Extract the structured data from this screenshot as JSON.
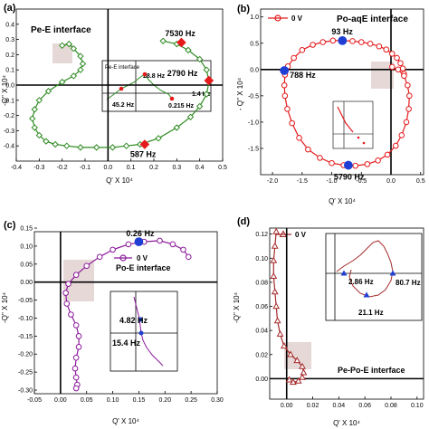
{
  "chart_data": [
    {
      "type": "scatter",
      "panel_label": "(a)",
      "title": "",
      "annotation_title": "Pe-E interface",
      "xlabel": "Q' X 10⁴",
      "ylabel": "-Q'' X 10⁴",
      "xlim": [
        -0.4,
        0.5
      ],
      "ylim": [
        -0.5,
        0.5
      ],
      "xticks": [
        "-0.4",
        "-0.3",
        "-0.2",
        "-0.1",
        "0.0",
        "0.1",
        "0.2",
        "0.3",
        "0.4",
        "0.5"
      ],
      "yticks": [
        "-0.4",
        "-0.3",
        "-0.2",
        "-0.1",
        "0.0",
        "0.1",
        "0.2",
        "0.3",
        "0.4"
      ],
      "grid": false,
      "color": "#2e8b22",
      "series": [
        {
          "x": [
            -0.2,
            -0.17,
            -0.15,
            -0.12,
            -0.11,
            -0.12,
            -0.15,
            -0.2,
            -0.26,
            -0.3,
            -0.32,
            -0.33,
            -0.32,
            -0.3,
            -0.27,
            -0.23,
            -0.18,
            -0.12,
            -0.05,
            0.02,
            0.08,
            0.14,
            0.22,
            0.3,
            0.36,
            0.4,
            0.43,
            0.44,
            0.43,
            0.4,
            0.35,
            0.3,
            0.24
          ],
          "y": [
            0.26,
            0.27,
            0.24,
            0.19,
            0.14,
            0.1,
            0.06,
            0.02,
            -0.04,
            -0.1,
            -0.16,
            -0.22,
            -0.28,
            -0.33,
            -0.37,
            -0.39,
            -0.4,
            -0.41,
            -0.41,
            -0.41,
            -0.4,
            -0.39,
            -0.35,
            -0.28,
            -0.21,
            -0.14,
            -0.06,
            0.02,
            0.1,
            0.17,
            0.23,
            0.27,
            0.29
          ]
        }
      ],
      "highlights": [
        {
          "label": "7530 Hz",
          "x": 0.32,
          "y": 0.28
        },
        {
          "label": "2790 Hz",
          "x": 0.44,
          "y": 0.03
        },
        {
          "label": "587 Hz",
          "x": 0.16,
          "y": -0.39
        }
      ],
      "inset_labels": [
        "Pe-E interface",
        "28.8 Hz",
        "1.4 Hz",
        "45.2 Hz",
        "0.215 Hz"
      ]
    },
    {
      "type": "scatter",
      "panel_label": "(b)",
      "title": "",
      "annotation_title": "Po-aqE interface",
      "legend": [
        "0 V"
      ],
      "xlabel": "Q' X 10⁴",
      "ylabel": "- Q'' X 10⁴",
      "xlim": [
        -2.2,
        0.55
      ],
      "ylim": [
        -2.0,
        1.15
      ],
      "xticks": [
        "-2.0",
        "-1.5",
        "-1.0",
        "-0.5",
        "0.0",
        "0.5"
      ],
      "yticks": [
        "-1.5",
        "-1.0",
        "-0.5",
        "0.0",
        "0.5",
        "1.0"
      ],
      "grid": false,
      "color": "#e41a1c",
      "series": [
        {
          "name": "0 V",
          "x": [
            0.22,
            0.2,
            0.16,
            0.1,
            0.02,
            -0.08,
            -0.2,
            -0.35,
            -0.5,
            -0.65,
            -0.82,
            -0.98,
            -1.15,
            -1.32,
            -1.5,
            -1.64,
            -1.74,
            -1.79,
            -1.8,
            -1.79,
            -1.75,
            -1.67,
            -1.55,
            -1.4,
            -1.2,
            -1.0,
            -0.8,
            -0.6,
            -0.4,
            -0.22,
            -0.06,
            0.08,
            0.18,
            0.26,
            0.3,
            0.31,
            0.28,
            0.22,
            0.12,
            0.02
          ],
          "y": [
            -0.08,
            0.02,
            0.12,
            0.22,
            0.3,
            0.38,
            0.44,
            0.49,
            0.52,
            0.54,
            0.55,
            0.55,
            0.52,
            0.47,
            0.37,
            0.22,
            0.06,
            -0.1,
            -0.3,
            -0.5,
            -0.75,
            -1.02,
            -1.3,
            -1.52,
            -1.68,
            -1.78,
            -1.82,
            -1.83,
            -1.8,
            -1.73,
            -1.62,
            -1.45,
            -1.25,
            -1.0,
            -0.75,
            -0.5,
            -0.3,
            -0.12,
            0.0,
            0.05
          ]
        }
      ],
      "highlights": [
        {
          "label": "93 Hz",
          "x": -0.82,
          "y": 0.55
        },
        {
          "label": "788 Hz",
          "x": -1.8,
          "y": -0.02
        },
        {
          "label": "5790 Hz",
          "x": -0.72,
          "y": -1.82
        }
      ]
    },
    {
      "type": "scatter",
      "panel_label": "(c)",
      "title": "",
      "annotation_title": "Po-E interface",
      "legend": [
        "0 V"
      ],
      "xlabel": "Q' X 10⁴",
      "ylabel": "-Q'' X 10⁴",
      "xlim": [
        -0.05,
        0.3
      ],
      "ylim": [
        -0.31,
        0.14
      ],
      "xticks": [
        "-0.05",
        "0.00",
        "0.05",
        "0.10",
        "0.15",
        "0.20",
        "0.25",
        "0.30"
      ],
      "yticks": [
        "-0.30",
        "-0.25",
        "-0.20",
        "-0.15",
        "-0.10",
        "-0.05",
        "0.00",
        "0.05",
        "0.10",
        "0.15"
      ],
      "grid": false,
      "color": "#8b1a9b",
      "series": [
        {
          "name": "0 V",
          "x": [
            0.245,
            0.235,
            0.215,
            0.19,
            0.16,
            0.13,
            0.1,
            0.075,
            0.05,
            0.03,
            0.015,
            0.01,
            0.012,
            0.02,
            0.03,
            0.035,
            0.035,
            0.03,
            0.028,
            0.03,
            0.032,
            0.03
          ],
          "y": [
            0.07,
            0.09,
            0.105,
            0.115,
            0.112,
            0.105,
            0.09,
            0.07,
            0.045,
            0.02,
            -0.005,
            -0.03,
            -0.06,
            -0.09,
            -0.12,
            -0.15,
            -0.18,
            -0.21,
            -0.24,
            -0.265,
            -0.285,
            -0.295
          ]
        }
      ],
      "highlights": [
        {
          "label": "0.26 Hz",
          "x": 0.15,
          "y": 0.112
        }
      ],
      "inset_labels": [
        "4.82 Hz",
        "15.4 Hz"
      ]
    },
    {
      "type": "scatter",
      "panel_label": "(d)",
      "title": "",
      "annotation_title": "Pe-Po-E interface",
      "legend": [
        "0 V"
      ],
      "xlabel": "Q' X 10⁴",
      "ylabel": "-Q'' X 10⁴",
      "xlim": [
        -0.013,
        0.105
      ],
      "ylim": [
        -0.017,
        0.125
      ],
      "xticks": [
        "0.00",
        "0.02",
        "0.04",
        "0.06",
        "0.08",
        "0.10"
      ],
      "yticks": [
        "0.00",
        "0.02",
        "0.04",
        "0.06",
        "0.08",
        "0.10",
        "0.12"
      ],
      "grid": false,
      "color": "#a52a2a",
      "series": [
        {
          "name": "0 V",
          "x": [
            -0.008,
            -0.009,
            -0.01,
            -0.01,
            -0.009,
            -0.008,
            -0.007,
            -0.005,
            -0.002,
            0.003,
            0.008,
            0.012,
            0.013,
            0.012,
            0.009,
            0.005,
            0.002
          ],
          "y": [
            0.122,
            0.11,
            0.098,
            0.085,
            0.072,
            0.06,
            0.048,
            0.037,
            0.027,
            0.02,
            0.015,
            0.01,
            0.005,
            0.001,
            -0.002,
            -0.003,
            -0.001
          ]
        }
      ],
      "highlights": [],
      "inset_labels": [
        "2.86 Hz",
        "80.7 Hz",
        "21.1 Hz"
      ]
    }
  ]
}
